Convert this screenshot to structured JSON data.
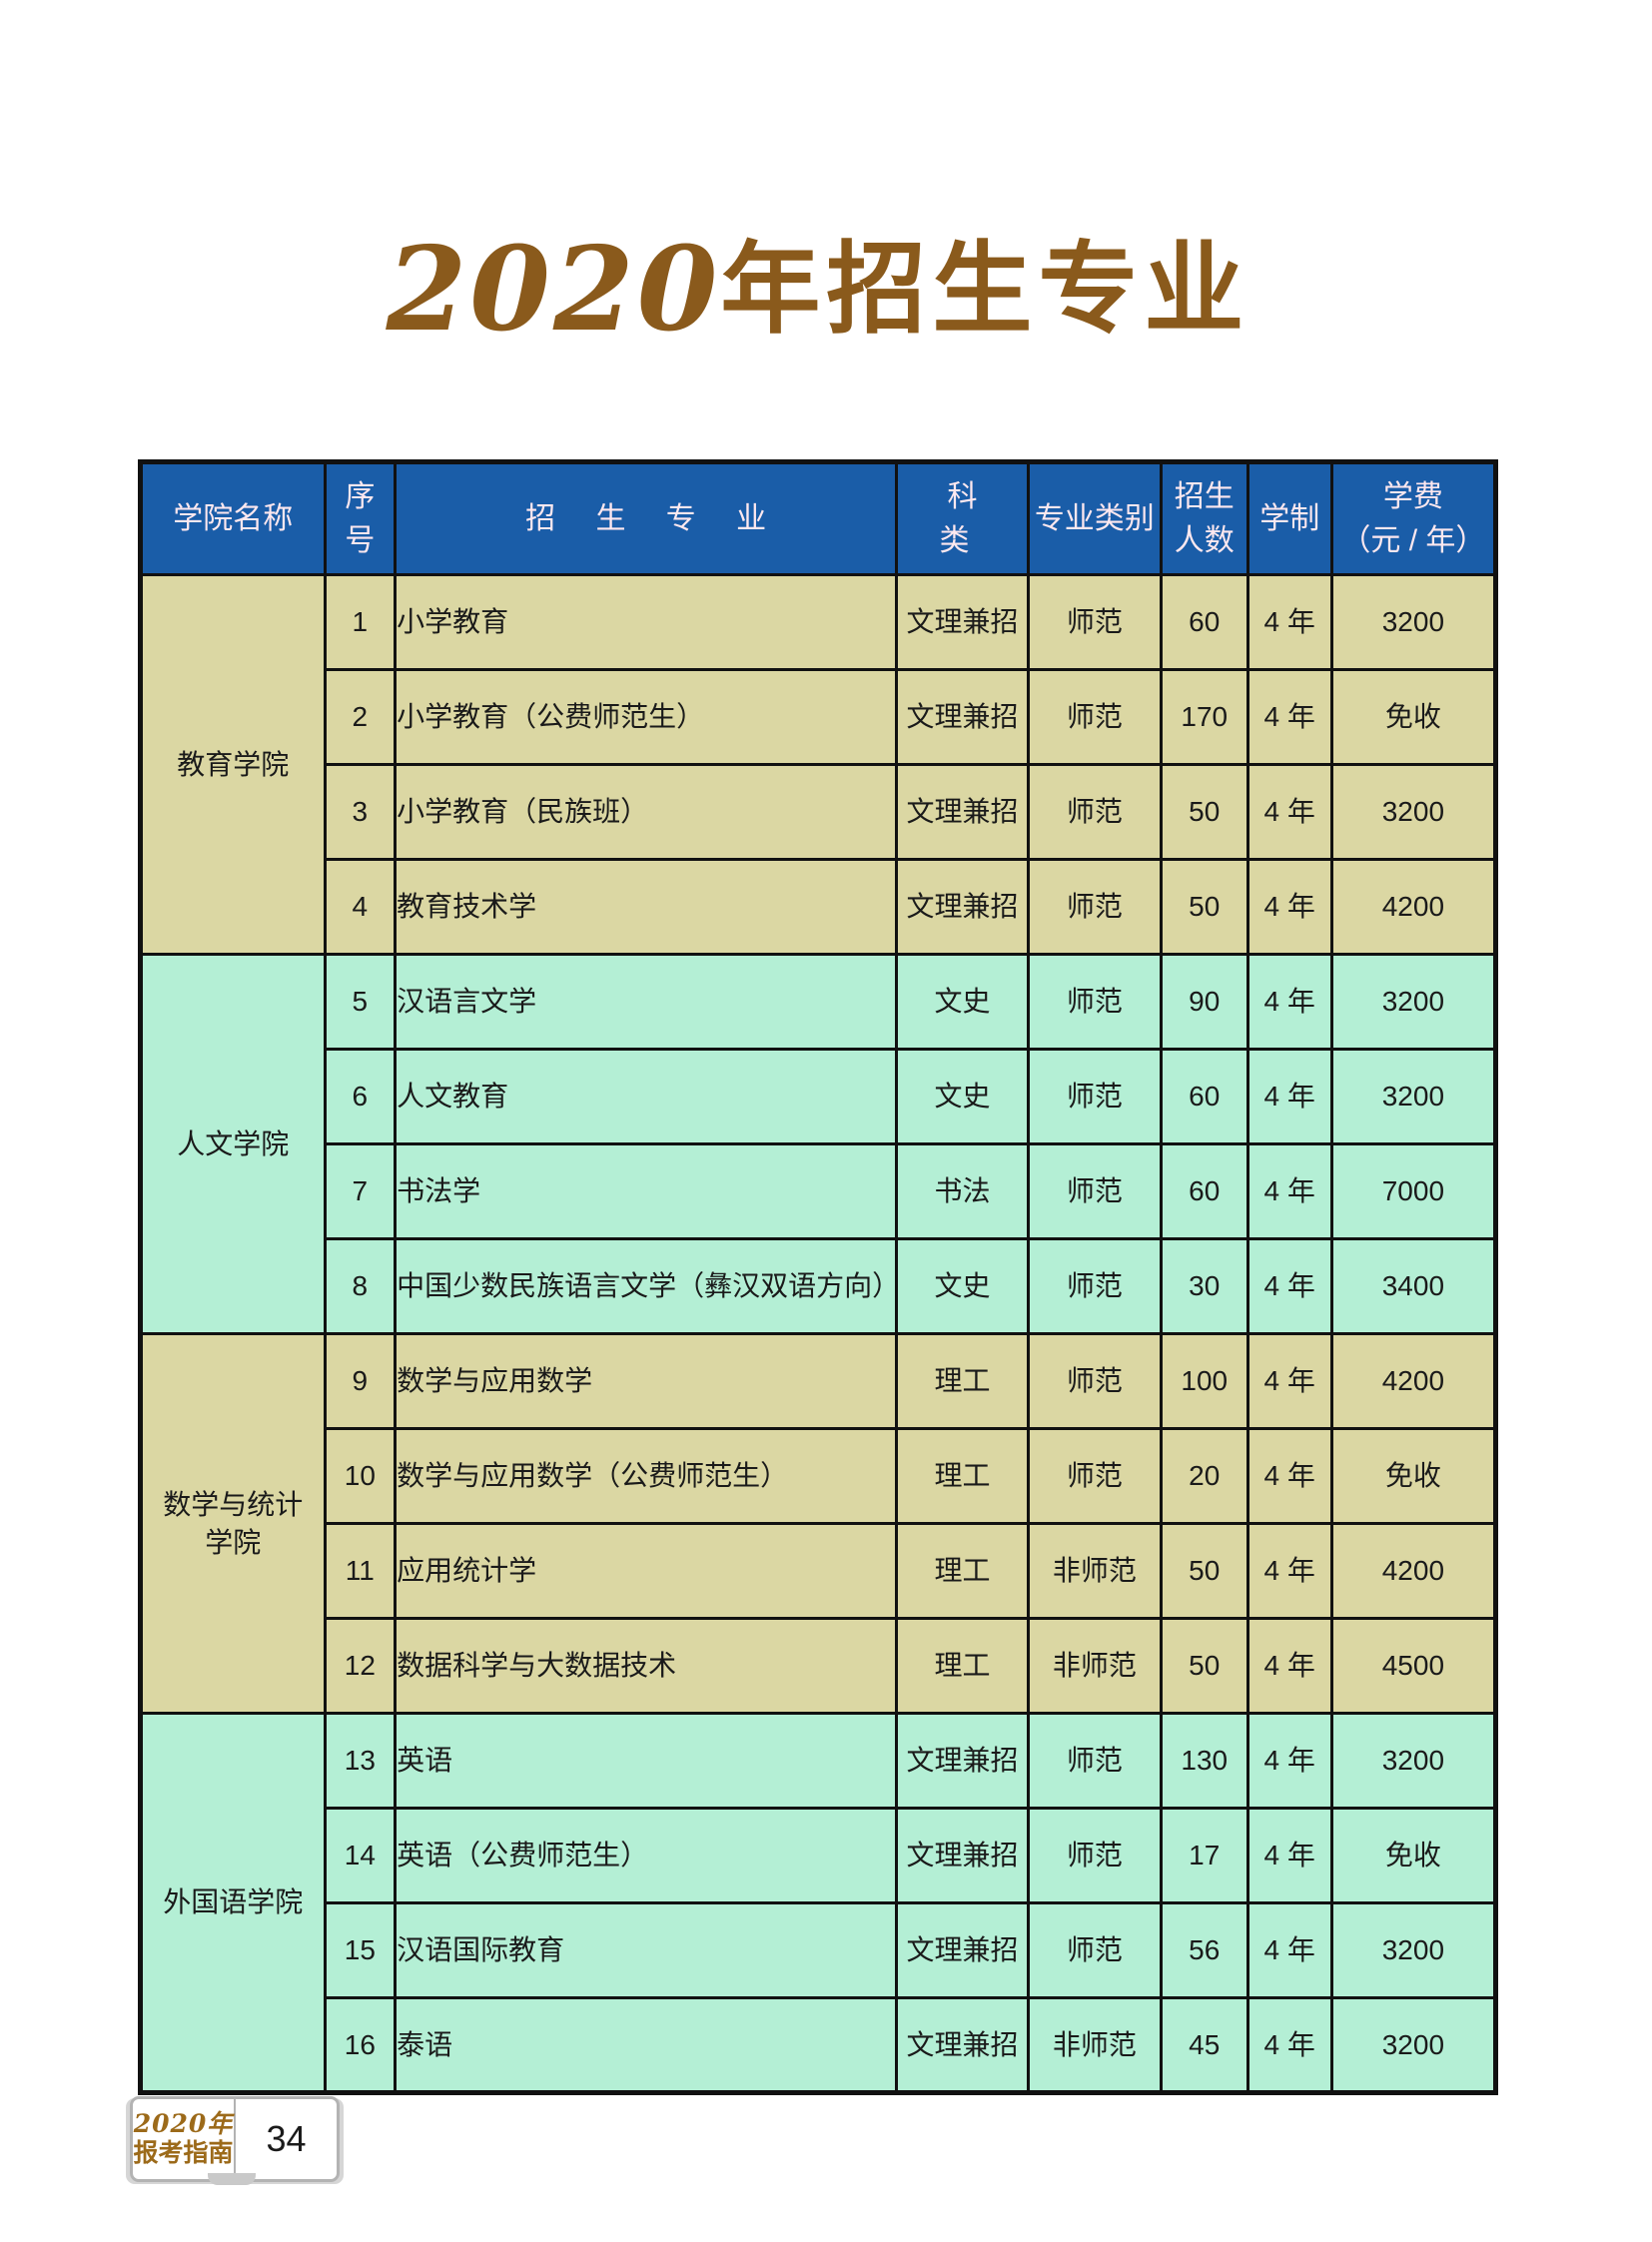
{
  "page": {
    "title": {
      "year": "2020",
      "rest": "年招生专业"
    }
  },
  "table": {
    "headers": {
      "college": "学院名称",
      "index": [
        "序",
        "号"
      ],
      "major": "招 生 专 业",
      "category": "科 类",
      "type": "专业类别",
      "enroll": [
        "招生",
        "人数"
      ],
      "duration": "学制",
      "tuition": [
        "学费",
        "（元 / 年）"
      ]
    },
    "groups": [
      {
        "college": {
          "lines": [
            "教育学院"
          ]
        },
        "theme": "beige",
        "rows": [
          {
            "no": "1",
            "major": "小学教育",
            "category": "文理兼招",
            "type": "师范",
            "enroll": "60",
            "duration": "4 年",
            "tuition": "3200"
          },
          {
            "no": "2",
            "major": "小学教育（公费师范生）",
            "category": "文理兼招",
            "type": "师范",
            "enroll": "170",
            "duration": "4 年",
            "tuition": "免收"
          },
          {
            "no": "3",
            "major": "小学教育（民族班）",
            "category": "文理兼招",
            "type": "师范",
            "enroll": "50",
            "duration": "4 年",
            "tuition": "3200"
          },
          {
            "no": "4",
            "major": "教育技术学",
            "category": "文理兼招",
            "type": "师范",
            "enroll": "50",
            "duration": "4 年",
            "tuition": "4200"
          }
        ]
      },
      {
        "college": {
          "lines": [
            "人文学院"
          ]
        },
        "theme": "mint",
        "rows": [
          {
            "no": "5",
            "major": "汉语言文学",
            "category": "文史",
            "type": "师范",
            "enroll": "90",
            "duration": "4 年",
            "tuition": "3200"
          },
          {
            "no": "6",
            "major": "人文教育",
            "category": "文史",
            "type": "师范",
            "enroll": "60",
            "duration": "4 年",
            "tuition": "3200"
          },
          {
            "no": "7",
            "major": "书法学",
            "category": "书法",
            "type": "师范",
            "enroll": "60",
            "duration": "4 年",
            "tuition": "7000"
          },
          {
            "no": "8",
            "major": "中国少数民族语言文学（彝汉双语方向）",
            "category": "文史",
            "type": "师范",
            "enroll": "30",
            "duration": "4 年",
            "tuition": "3400"
          }
        ]
      },
      {
        "college": {
          "lines": [
            "数学与统计",
            "学院"
          ]
        },
        "theme": "beige",
        "rows": [
          {
            "no": "9",
            "major": "数学与应用数学",
            "category": "理工",
            "type": "师范",
            "enroll": "100",
            "duration": "4 年",
            "tuition": "4200"
          },
          {
            "no": "10",
            "major": "数学与应用数学（公费师范生）",
            "category": "理工",
            "type": "师范",
            "enroll": "20",
            "duration": "4 年",
            "tuition": "免收"
          },
          {
            "no": "11",
            "major": "应用统计学",
            "category": "理工",
            "type": "非师范",
            "enroll": "50",
            "duration": "4 年",
            "tuition": "4200"
          },
          {
            "no": "12",
            "major": "数据科学与大数据技术",
            "category": "理工",
            "type": "非师范",
            "enroll": "50",
            "duration": "4 年",
            "tuition": "4500"
          }
        ]
      },
      {
        "college": {
          "lines": [
            "外国语学院"
          ]
        },
        "theme": "mint",
        "rows": [
          {
            "no": "13",
            "major": "英语",
            "category": "文理兼招",
            "type": "师范",
            "enroll": "130",
            "duration": "4 年",
            "tuition": "3200"
          },
          {
            "no": "14",
            "major": "英语（公费师范生）",
            "category": "文理兼招",
            "type": "师范",
            "enroll": "17",
            "duration": "4 年",
            "tuition": "免收"
          },
          {
            "no": "15",
            "major": "汉语国际教育",
            "category": "文理兼招",
            "type": "师范",
            "enroll": "56",
            "duration": "4 年",
            "tuition": "3200"
          },
          {
            "no": "16",
            "major": "泰语",
            "category": "文理兼招",
            "type": "非师范",
            "enroll": "45",
            "duration": "4 年",
            "tuition": "3200"
          }
        ]
      }
    ]
  },
  "footer": {
    "logo_top": "2020年",
    "logo_bottom": "报考指南",
    "page_number": "34"
  },
  "colors": {
    "header_blue": "#1a5da8",
    "group_beige": "#dbd7a3",
    "group_mint": "#b4efd5",
    "title_brown": "#8a5a1c",
    "logo_brown": "#9c6a1a",
    "border_black": "#111111"
  }
}
